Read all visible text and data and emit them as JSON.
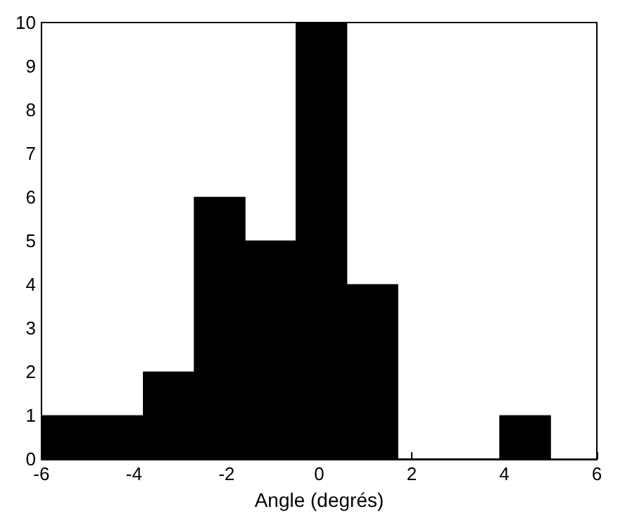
{
  "chart_data": {
    "type": "histogram",
    "xlabel": "Angle (degrés)",
    "bins": [
      -6,
      -4.9,
      -3.8,
      -2.7,
      -1.6,
      -0.5,
      0.6,
      1.7,
      2.8,
      3.9,
      5.0
    ],
    "values": [
      1,
      1,
      2,
      6,
      5,
      10,
      4,
      0,
      0,
      1
    ],
    "color": "#000000",
    "xlim": [
      -6,
      6
    ],
    "xticks": [
      -6,
      -4,
      -2,
      0,
      2,
      4,
      6
    ],
    "ylim": [
      0,
      10
    ],
    "yticks": [
      0,
      1,
      2,
      3,
      4,
      5,
      6,
      7,
      8,
      9,
      10
    ],
    "grid": false
  }
}
